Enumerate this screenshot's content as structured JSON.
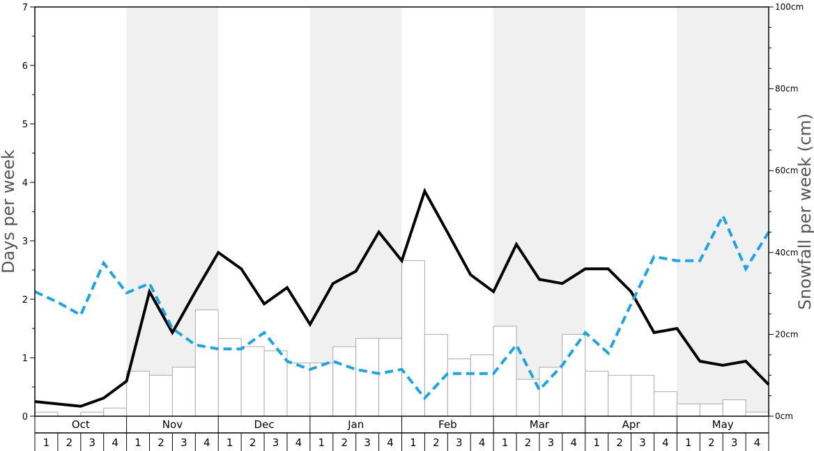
{
  "chart_data": {
    "type": "bar",
    "months": [
      "Oct",
      "Nov",
      "Dec",
      "Jan",
      "Feb",
      "Mar",
      "Apr",
      "May"
    ],
    "weeks": [
      "1",
      "2",
      "3",
      "4"
    ],
    "ylabel_left": "Days per week",
    "ylabel_right": "Snowfall per week (cm)",
    "ylim_left": [
      0,
      7
    ],
    "ylim_right": [
      0,
      100
    ],
    "yticks_left": [
      "0",
      "1",
      "2",
      "3",
      "4",
      "5",
      "6",
      "7"
    ],
    "yticks_right": [
      "0cm",
      "20cm",
      "40cm",
      "60cm",
      "80cm",
      "100cm"
    ],
    "series": [
      {
        "kind": "bar",
        "axis": "right",
        "color": "#ffffff",
        "stroke": "#aaaaaa",
        "values": [
          1,
          0,
          1,
          2,
          11,
          10,
          12,
          26,
          19,
          17,
          16,
          13,
          13,
          17,
          19,
          19,
          38,
          20,
          14,
          15,
          22,
          9,
          12,
          20,
          11,
          10,
          10,
          6,
          3,
          3,
          4,
          1
        ]
      },
      {
        "kind": "line",
        "axis": "left",
        "color": "#000000",
        "style": "solid",
        "values": [
          0.25,
          0.21,
          0.17,
          0.31,
          0.6,
          2.13,
          1.43,
          2.13,
          2.8,
          2.52,
          1.92,
          2.2,
          1.57,
          2.27,
          2.48,
          3.15,
          2.66,
          3.85,
          3.14,
          2.42,
          2.13,
          2.94,
          2.34,
          2.27,
          2.52,
          2.52,
          2.13,
          1.43,
          1.5,
          0.94,
          0.87,
          0.94,
          0.54
        ]
      },
      {
        "kind": "line",
        "axis": "left",
        "color": "#1aa3e8",
        "style": "dashed",
        "values": [
          2.13,
          1.95,
          1.73,
          2.62,
          2.11,
          2.27,
          1.5,
          1.22,
          1.15,
          1.15,
          1.43,
          0.94,
          0.8,
          0.94,
          0.8,
          0.73,
          0.8,
          0.31,
          0.73,
          0.73,
          0.73,
          1.22,
          0.45,
          0.87,
          1.43,
          1.08,
          1.92,
          2.73,
          2.66,
          2.66,
          3.43,
          2.52,
          3.15
        ]
      }
    ]
  }
}
